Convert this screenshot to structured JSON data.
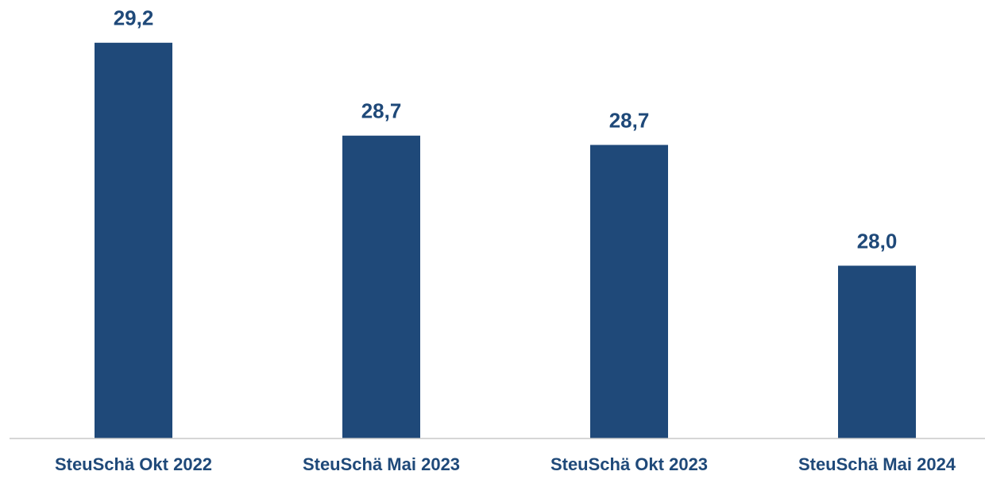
{
  "chart_data": {
    "type": "bar",
    "categories": [
      "SteuSchä Okt 2022",
      "SteuSchä Mai 2023",
      "SteuSchä Okt 2023",
      "SteuSchä Mai 2024"
    ],
    "values": [
      29.2,
      28.7,
      28.65,
      28.0
    ],
    "value_labels": [
      "29,2",
      "28,7",
      "28,7",
      "28,0"
    ],
    "color": "#1f4979",
    "ylim": [
      27.07,
      29.43
    ]
  }
}
